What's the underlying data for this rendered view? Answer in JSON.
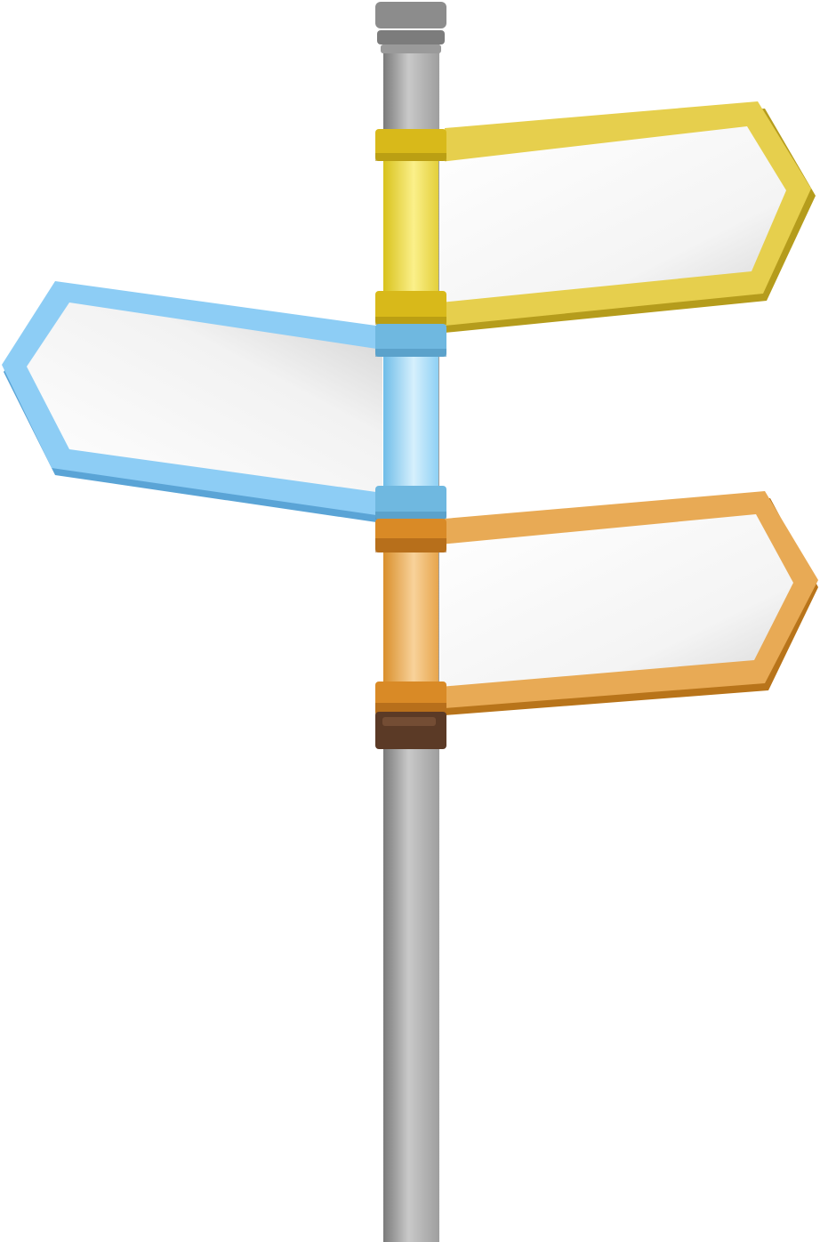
{
  "scene": {
    "background": "#ffffff",
    "pole": {
      "colors": {
        "dark": "#7a7a7a",
        "mid": "#c9c9c9",
        "light": "#9e9e9e",
        "cap": "#8c8c8c"
      }
    },
    "signs": [
      {
        "id": "yellow",
        "direction": "right",
        "text": "",
        "frame": "#e6cf4d",
        "frame_edge": "#b59c1c",
        "collar": "#d8b91a",
        "collar_dark": "#a88d0f",
        "sleeve": "#efd83a"
      },
      {
        "id": "blue",
        "direction": "left",
        "text": "",
        "frame": "#8dcdf5",
        "frame_edge": "#5aa4d6",
        "collar": "#6fb8e0",
        "collar_dark": "#4f93bd",
        "sleeve": "#9fd8f7"
      },
      {
        "id": "orange",
        "direction": "right",
        "text": "",
        "frame": "#e8aa55",
        "frame_edge": "#b8741a",
        "collar": "#d98a26",
        "collar_dark": "#9a5a12",
        "sleeve": "#eaaa4c"
      }
    ],
    "base_collar": {
      "color": "#5b3a26"
    }
  }
}
